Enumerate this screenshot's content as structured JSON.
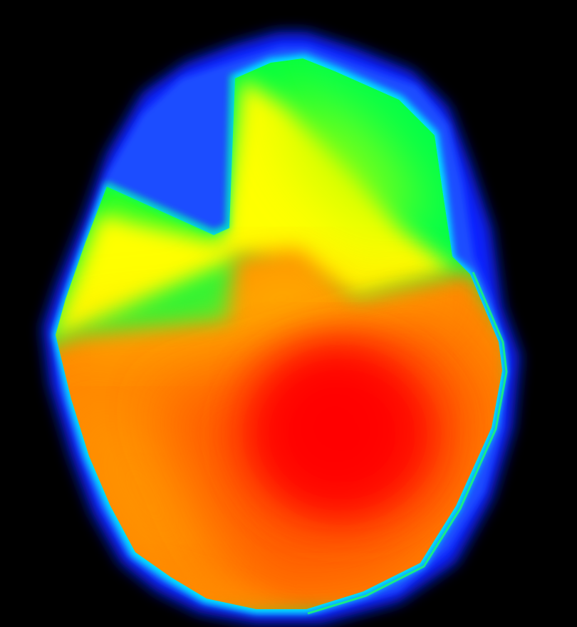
{
  "image": {
    "description_role": "heatmap",
    "background_color": "#000000",
    "palette": {
      "background": "#000000",
      "halo": "#0a1aff",
      "outer_blue": "#1a4dff",
      "cyan": "#00f0e0",
      "green": "#00ff40",
      "yellow": "#ffff00",
      "orange": "#ff8a00",
      "red": "#ff0000"
    }
  }
}
